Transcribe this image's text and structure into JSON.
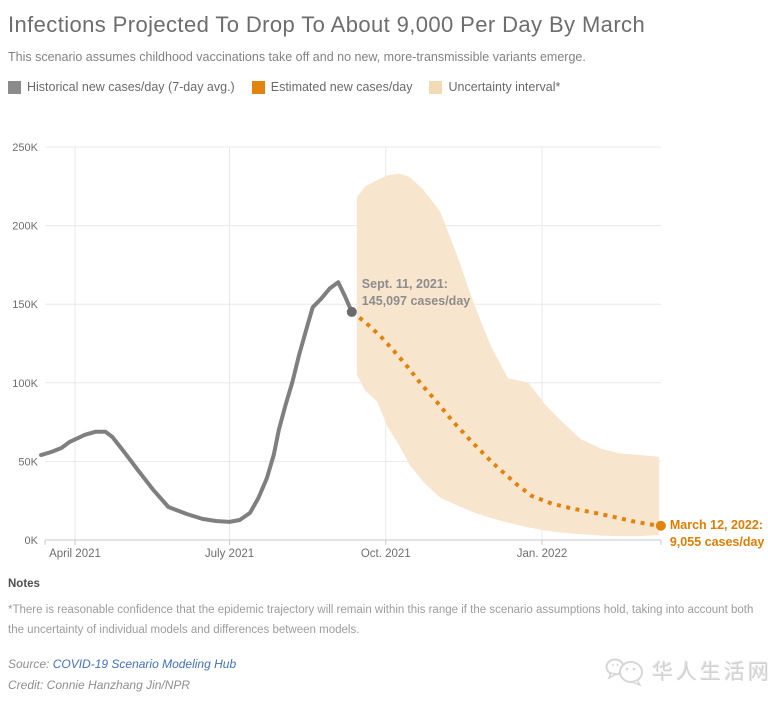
{
  "header": {
    "title": "Infections Projected To Drop To About 9,000 Per Day By March",
    "subtitle": "This scenario assumes childhood vaccinations take off and no new, more-transmissible variants emerge."
  },
  "legend": {
    "items": [
      {
        "label": "Historical new cases/day (7-day avg.)",
        "color": "#8b8b8b"
      },
      {
        "label": "Estimated new cases/day",
        "color": "#e2830d"
      },
      {
        "label": "Uncertainty interval*",
        "color": "#f4d9b5"
      }
    ]
  },
  "chart_data": {
    "type": "line",
    "title": "Infections Projected To Drop To About 9,000 Per Day By March",
    "xlabel": "",
    "ylabel": "new cases/day",
    "ylim": [
      0,
      250000
    ],
    "grid": true,
    "yticks": [
      {
        "value": 0,
        "label": "0K"
      },
      {
        "value": 50000,
        "label": "50K"
      },
      {
        "value": 100000,
        "label": "100K"
      },
      {
        "value": 150000,
        "label": "150K"
      },
      {
        "value": 200000,
        "label": "200K"
      },
      {
        "value": 250000,
        "label": "250K"
      }
    ],
    "xticks": [
      {
        "date": "2021-04-01",
        "label": "April 2021"
      },
      {
        "date": "2021-07-01",
        "label": "July 2021"
      },
      {
        "date": "2021-10-01",
        "label": "Oct. 2021"
      },
      {
        "date": "2022-01-01",
        "label": "Jan. 2022"
      }
    ],
    "series": [
      {
        "name": "Historical new cases/day (7-day avg.)",
        "style": "solid",
        "color": "#7f7f7f",
        "points": [
          [
            "2021-03-12",
            54000
          ],
          [
            "2021-03-18",
            56000
          ],
          [
            "2021-03-24",
            58500
          ],
          [
            "2021-03-29",
            62500
          ],
          [
            "2021-04-07",
            67000
          ],
          [
            "2021-04-13",
            68800
          ],
          [
            "2021-04-19",
            68800
          ],
          [
            "2021-04-23",
            65500
          ],
          [
            "2021-04-30",
            56000
          ],
          [
            "2021-05-08",
            44500
          ],
          [
            "2021-05-17",
            32000
          ],
          [
            "2021-05-26",
            21000
          ],
          [
            "2021-06-06",
            16500
          ],
          [
            "2021-06-15",
            13400
          ],
          [
            "2021-06-23",
            12100
          ],
          [
            "2021-07-01",
            11500
          ],
          [
            "2021-07-07",
            12700
          ],
          [
            "2021-07-13",
            17200
          ],
          [
            "2021-07-18",
            26700
          ],
          [
            "2021-07-23",
            39400
          ],
          [
            "2021-07-27",
            54000
          ],
          [
            "2021-07-30",
            70000
          ],
          [
            "2021-08-03",
            86000
          ],
          [
            "2021-08-07",
            100500
          ],
          [
            "2021-08-11",
            118000
          ],
          [
            "2021-08-16",
            137000
          ],
          [
            "2021-08-19",
            148000
          ],
          [
            "2021-08-24",
            153500
          ],
          [
            "2021-08-29",
            160000
          ],
          [
            "2021-09-03",
            164000
          ],
          [
            "2021-09-07",
            155000
          ],
          [
            "2021-09-11",
            145097
          ]
        ]
      },
      {
        "name": "Estimated new cases/day",
        "style": "dotted",
        "color": "#e2830d",
        "points": [
          [
            "2021-09-11",
            145097
          ],
          [
            "2021-09-19",
            138500
          ],
          [
            "2021-09-28",
            129500
          ],
          [
            "2021-10-06",
            120000
          ],
          [
            "2021-10-14",
            110000
          ],
          [
            "2021-10-22",
            99000
          ],
          [
            "2021-10-31",
            88000
          ],
          [
            "2021-11-09",
            76000
          ],
          [
            "2021-11-21",
            62000
          ],
          [
            "2021-12-03",
            49000
          ],
          [
            "2021-12-17",
            35500
          ],
          [
            "2021-12-26",
            28000
          ],
          [
            "2022-01-07",
            23000
          ],
          [
            "2022-01-19",
            20000
          ],
          [
            "2022-01-31",
            17500
          ],
          [
            "2022-02-11",
            15000
          ],
          [
            "2022-02-23",
            12000
          ],
          [
            "2022-03-05",
            10000
          ],
          [
            "2022-03-12",
            9055
          ]
        ]
      }
    ],
    "band": {
      "name": "Uncertainty interval*",
      "color": "#f8e5ce",
      "points": [
        [
          "2021-09-14",
          105000,
          218000
        ],
        [
          "2021-09-19",
          95000,
          225000
        ],
        [
          "2021-09-26",
          88000,
          229000
        ],
        [
          "2021-10-02",
          72000,
          232000
        ],
        [
          "2021-10-09",
          60000,
          233000
        ],
        [
          "2021-10-15",
          48000,
          231000
        ],
        [
          "2021-10-23",
          37000,
          223000
        ],
        [
          "2021-11-02",
          27000,
          209000
        ],
        [
          "2021-11-12",
          22000,
          181000
        ],
        [
          "2021-11-22",
          17500,
          150000
        ],
        [
          "2021-12-02",
          14000,
          123000
        ],
        [
          "2021-12-12",
          11000,
          103000
        ],
        [
          "2021-12-24",
          8000,
          100000
        ],
        [
          "2022-01-03",
          6000,
          86000
        ],
        [
          "2022-01-12",
          4800,
          76000
        ],
        [
          "2022-01-24",
          3600,
          64000
        ],
        [
          "2022-02-05",
          2800,
          58000
        ],
        [
          "2022-02-16",
          2500,
          55000
        ],
        [
          "2022-02-28",
          2500,
          54000
        ],
        [
          "2022-03-11",
          3200,
          53000
        ]
      ]
    },
    "annotations": [
      {
        "date": "2021-09-11",
        "value": 145097,
        "lines": [
          "Sept. 11, 2021:",
          "145,097 cases/day"
        ],
        "text_color": "#8c8c8c",
        "dot_color": "#6a6a6a",
        "placement": "above-right"
      },
      {
        "date": "2022-03-12",
        "value": 9055,
        "lines": [
          "March 12, 2022:",
          "9,055 cases/day"
        ],
        "text_color": "#e07c00",
        "dot_color": "#e2830d",
        "placement": "right"
      }
    ],
    "axis_colors": {
      "grid": "#e8e8e8",
      "axis_line": "#c9c9c9",
      "tick_label": "#6e6e6e"
    }
  },
  "notes": {
    "heading": "Notes",
    "body": "*There is reasonable confidence that the epidemic trajectory will remain within this range if the scenario assumptions hold, taking into account both the uncertainty of individual models and differences between models."
  },
  "footer": {
    "source_label": "Source: ",
    "source_link": "COVID-19 Scenario Modeling Hub",
    "credit": "Credit: Connie Hanzhang Jin/NPR"
  },
  "watermark": {
    "text": "华人生活网"
  }
}
